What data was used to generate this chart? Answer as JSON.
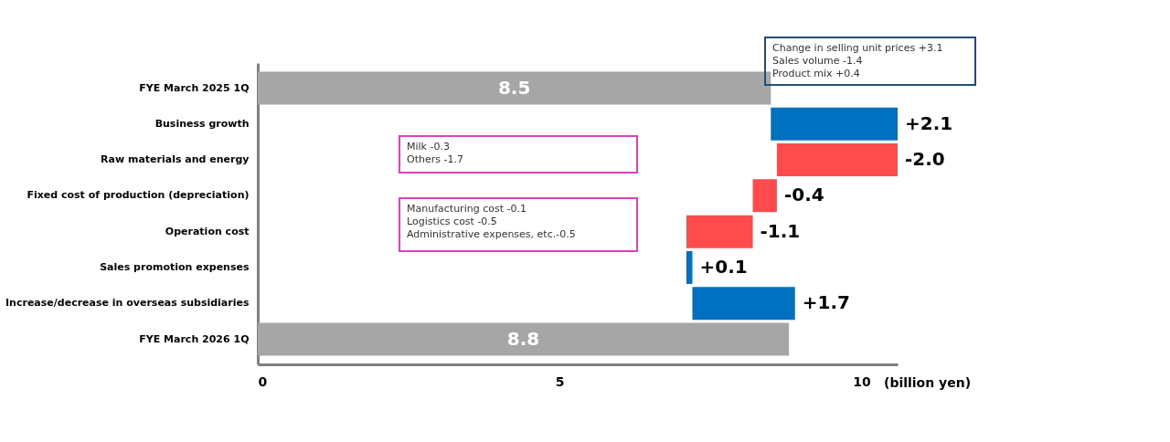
{
  "chart_data": {
    "type": "bar",
    "orientation": "horizontal",
    "categories": [
      "FYE March 2025 1Q",
      "Business growth",
      "Raw materials and energy",
      "Fixed cost of production (depreciation)",
      "Operation cost",
      "Sales promotion expenses",
      "Increase/decrease in overseas subsidiaries",
      "FYE March 2026 1Q"
    ],
    "values": [
      8.5,
      2.1,
      -2.0,
      -0.4,
      -1.1,
      0.1,
      1.7,
      8.8
    ],
    "base": [
      0,
      8.5,
      10.6,
      8.6,
      8.2,
      7.1,
      7.2,
      0
    ],
    "colors": [
      "#a6a6a6",
      "#0070c0",
      "#ff4b4b",
      "#ff4b4b",
      "#ff4b4b",
      "#0070c0",
      "#0070c0",
      "#a6a6a6"
    ],
    "value_labels": [
      "8.5",
      "+2.1",
      "-2.0",
      "-0.4",
      "-1.1",
      "+0.1",
      "+1.7",
      "8.8"
    ],
    "xlim": [
      0,
      10.6
    ],
    "xticks": [
      0,
      5,
      10
    ],
    "xlabel": "(billion yen)",
    "grid": false,
    "annotations": [
      "Change in selling unit prices  +3.1\nSales volume  -1.4\nProduct mix  +0.4",
      "Milk -0.3\nOthers -1.7",
      "Manufacturing cost  -0.1\nLogistics cost  -0.5\nAdministrative expenses, etc.-0.5"
    ]
  }
}
